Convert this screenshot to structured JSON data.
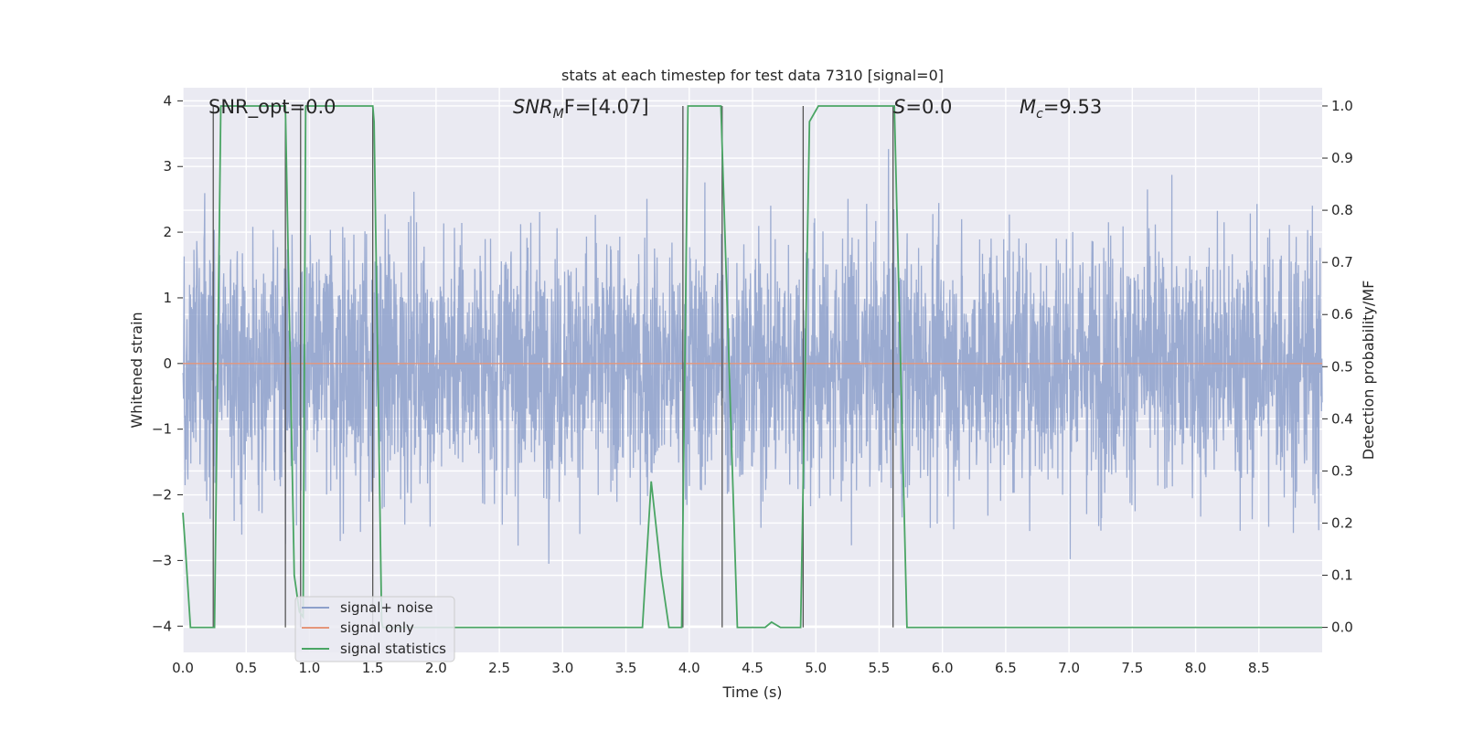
{
  "chart_data": {
    "type": "line",
    "title": "stats at each timestep for test data 7310 [signal=0]",
    "xlabel": "Time (s)",
    "ylabel": "Whitened strain",
    "y2label": "Detection probability/MF",
    "xlim": [
      0.0,
      9.0
    ],
    "ylim": [
      -4.4,
      4.2
    ],
    "y2lim": [
      -0.048,
      1.035
    ],
    "xticks": [
      "0.0",
      "0.5",
      "1.0",
      "1.5",
      "2.0",
      "2.5",
      "3.0",
      "3.5",
      "4.0",
      "4.5",
      "5.0",
      "5.5",
      "6.0",
      "6.5",
      "7.0",
      "7.5",
      "8.0",
      "8.5"
    ],
    "yticks": [
      "4",
      "3",
      "2",
      "1",
      "0",
      "−1",
      "−2",
      "−3",
      "−4"
    ],
    "y2ticks": [
      "1.0",
      "0.9",
      "0.8",
      "0.7",
      "0.6",
      "0.5",
      "0.4",
      "0.3",
      "0.2",
      "0.1",
      "0.0"
    ],
    "annotations": {
      "snr_opt": "SNR_opt=0.0",
      "snr_mf_base": "SNR",
      "snr_mf_sub": "M",
      "snr_mf_rest": "F=[4.07]",
      "s_base": "S",
      "s_rest": "=0.0",
      "mc_base": "M",
      "mc_sub": "c",
      "mc_rest": "=9.53"
    },
    "grid": true,
    "legend_position": "lower-left",
    "series": [
      {
        "name": "signal+ noise",
        "color": "#8da0cb",
        "description_note": "dense whitened noise, approximately Gaussian, amplitude mostly within ±2.5, peaks up to about ±3.6",
        "y_peak_range": [
          -3.6,
          3.5
        ]
      },
      {
        "name": "signal only",
        "color": "#e5967a",
        "x": [
          0.0,
          9.0
        ],
        "y": [
          0.0,
          0.0
        ]
      },
      {
        "name": "signal statistics",
        "color": "#4aa564",
        "x": [
          0.0,
          0.02,
          0.06,
          0.2,
          0.25,
          0.3,
          0.8,
          0.81,
          0.88,
          0.92,
          0.95,
          0.97,
          1.5,
          1.51,
          1.57,
          1.58,
          3.63,
          3.7,
          3.78,
          3.84,
          3.94,
          3.99,
          4.25,
          4.38,
          4.45,
          4.6,
          4.65,
          4.72,
          4.88,
          4.95,
          5.02,
          5.62,
          5.72,
          5.98,
          6.05,
          9.0
        ],
        "y": [
          0.22,
          0.15,
          0.0,
          0.0,
          0.0,
          1.0,
          1.0,
          1.0,
          0.1,
          0.03,
          0.02,
          1.0,
          1.0,
          0.97,
          0.01,
          0.0,
          0.0,
          0.28,
          0.1,
          0.0,
          0.0,
          1.0,
          1.0,
          0.0,
          0.0,
          0.0,
          0.01,
          0.0,
          0.0,
          0.97,
          1.0,
          1.0,
          0.0,
          0.0,
          0.0,
          0.0
        ]
      }
    ],
    "vertical_markers_x": [
      0.24,
      0.81,
      0.93,
      1.5,
      3.95,
      4.26,
      4.9,
      5.61
    ],
    "legend": [
      {
        "label": "signal+ noise",
        "color": "#8da0cb"
      },
      {
        "label": "signal only",
        "color": "#e5967a"
      },
      {
        "label": "signal statistics",
        "color": "#4aa564"
      }
    ]
  }
}
